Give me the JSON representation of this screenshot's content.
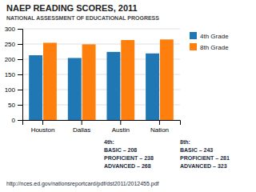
{
  "chart_data": {
    "type": "bar",
    "title": "NAEP READING SCORES, 2011",
    "subtitle": "NATIONAL ASSESSMENT OF EDUCATIONAL PROGRESS",
    "categories": [
      "Houston",
      "Dallas",
      "Austin",
      "Nation"
    ],
    "series": [
      {
        "name": "4th Grade",
        "values": [
          213,
          204,
          224,
          219
        ]
      },
      {
        "name": "8th Grade",
        "values": [
          254,
          249,
          263,
          265
        ]
      }
    ],
    "ylim": [
      0,
      300
    ],
    "yticks": [
      0,
      50,
      100,
      150,
      200,
      250,
      300
    ],
    "grid": true,
    "legend": "right",
    "annotations": [
      [
        "http://nces.ed.gov/nationsreportcard/pdf/dst2011/2012455.pdf"
      ],
      [
        "4th:",
        "BASIC – 208",
        "PROFICIENT – 238",
        "ADVANCED – 268"
      ],
      [
        "8th:",
        "BASIC – 243",
        "PROFICIENT – 281",
        "ADVANCED – 323"
      ]
    ]
  }
}
